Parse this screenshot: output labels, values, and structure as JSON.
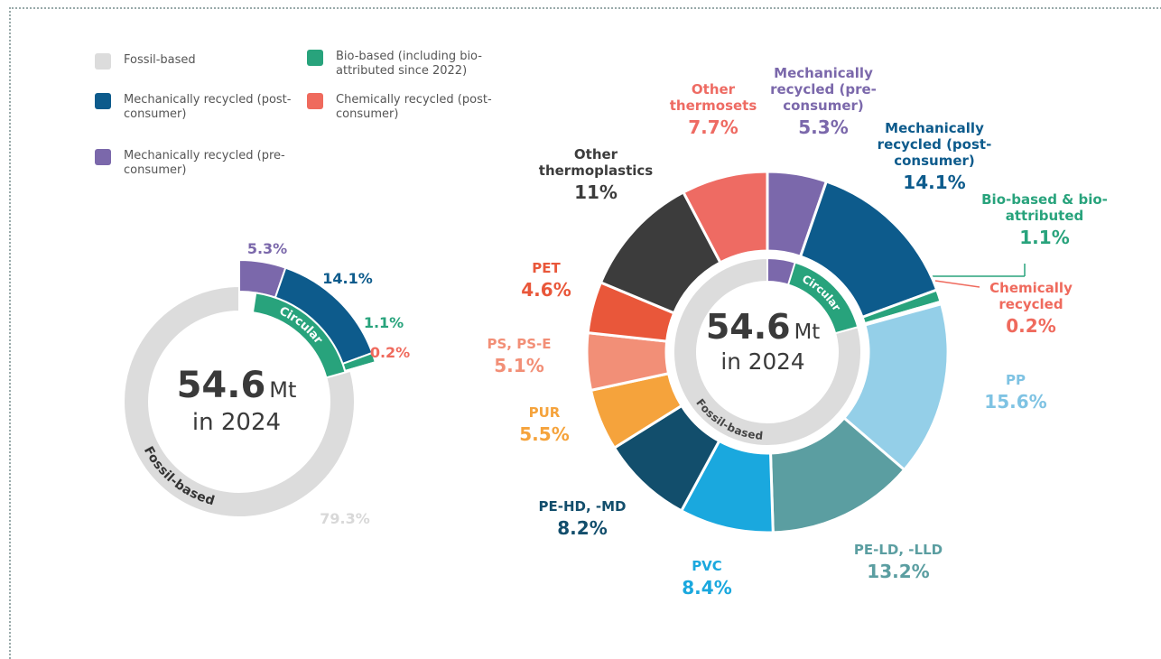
{
  "chart_data": [
    {
      "type": "donut",
      "categories": [
        "Mechanically recycled (pre-consumer)",
        "Mechanically recycled (post-consumer)",
        "Bio-based (including bio-attributed since 2022)",
        "Chemically recycled (post-consumer)",
        "Fossil-based"
      ],
      "values": [
        5.3,
        14.1,
        1.1,
        0.2,
        79.3
      ],
      "value_labels": [
        "5.3%",
        "14.1%",
        "1.1%",
        "0.2%",
        "79.3%"
      ],
      "colors": [
        "#7b68ab",
        "#0d5b8c",
        "#28a37c",
        "#ef6a5d",
        "#dcdcdc"
      ],
      "ring_labels": [
        "Circular",
        "Fossil-based"
      ],
      "center": {
        "value": "54.6",
        "unit": "Mt",
        "sub": "in 2024"
      }
    },
    {
      "type": "donut",
      "categories": [
        "Mechanically recycled (pre-consumer)",
        "Mechanically recycled (post-consumer)",
        "Bio-based & bio-attributed",
        "Chemically recycled",
        "PP",
        "PE-LD, -LLD",
        "PVC",
        "PE-HD, -MD",
        "PUR",
        "PS, PS-E",
        "PET",
        "Other thermoplastics",
        "Other thermosets"
      ],
      "values": [
        5.3,
        14.1,
        1.1,
        0.2,
        15.6,
        13.2,
        8.4,
        8.2,
        5.5,
        5.1,
        4.6,
        11,
        7.7
      ],
      "value_labels": [
        "5.3%",
        "14.1%",
        "1.1%",
        "0.2%",
        "15.6%",
        "13.2%",
        "8.4%",
        "8.2%",
        "5.5%",
        "5.1%",
        "4.6%",
        "11%",
        "7.7%"
      ],
      "colors": [
        "#7b68ab",
        "#0d5b8c",
        "#28a37c",
        "#ef6a5d",
        "#94cfe8",
        "#5b9ea1",
        "#1aa8de",
        "#124e6c",
        "#f5a33c",
        "#f28f77",
        "#e9573a",
        "#3c3c3c",
        "#ee6b63"
      ],
      "ring_labels": [
        "Circular",
        "Fossil-based"
      ],
      "center": {
        "value": "54.6",
        "unit": "Mt",
        "sub": "in 2024"
      }
    }
  ]
}
